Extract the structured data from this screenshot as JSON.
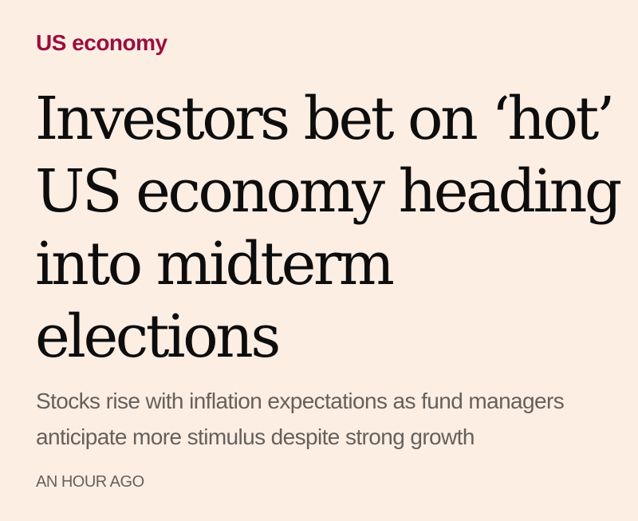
{
  "article": {
    "topic": "US economy",
    "headline": "Investors bet on ‘hot’ US economy heading into midterm elections",
    "standfirst": "Stocks rise with inflation expectations as fund managers anticipate more stimulus despite strong growth",
    "timestamp": "AN HOUR AGO"
  },
  "colors": {
    "background": "#fdeee4",
    "topic": "#990f3d",
    "headline": "#0d0d0d",
    "standfirst": "#66605c"
  }
}
